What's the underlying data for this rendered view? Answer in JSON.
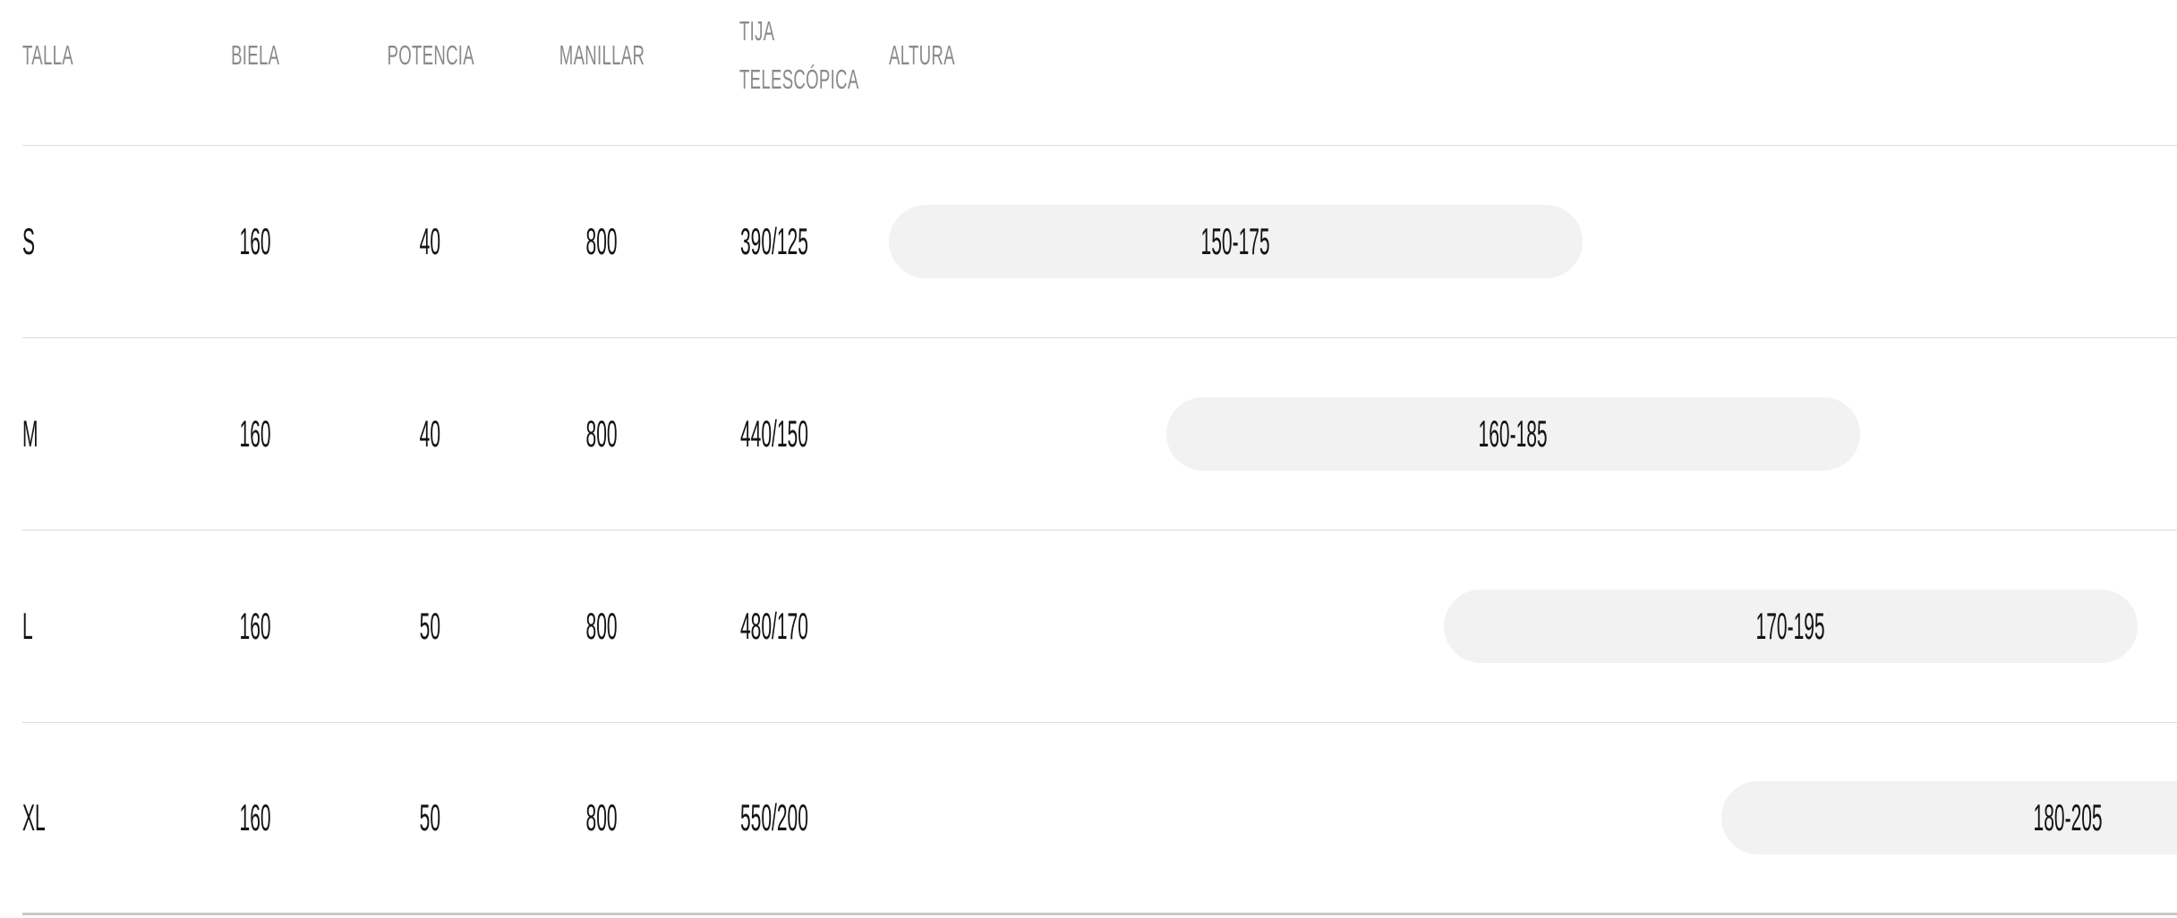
{
  "table": {
    "columns": [
      {
        "key": "talla",
        "label": "TALLA"
      },
      {
        "key": "biela",
        "label": "BIELA"
      },
      {
        "key": "potencia",
        "label": "POTENCIA"
      },
      {
        "key": "manillar",
        "label": "MANILLAR"
      },
      {
        "key": "tija",
        "label": "TIJA TELESCÓPICA"
      },
      {
        "key": "altura",
        "label": "ALTURA"
      }
    ],
    "rows": [
      {
        "talla": "S",
        "biela": "160",
        "potencia": "40",
        "manillar": "800",
        "tija": "390/125",
        "altura": {
          "label": "150-175",
          "min_cm": 150,
          "max_cm": 175
        }
      },
      {
        "talla": "M",
        "biela": "160",
        "potencia": "40",
        "manillar": "800",
        "tija": "440/150",
        "altura": {
          "label": "160-185",
          "min_cm": 160,
          "max_cm": 185
        }
      },
      {
        "talla": "L",
        "biela": "160",
        "potencia": "50",
        "manillar": "800",
        "tija": "480/170",
        "altura": {
          "label": "170-195",
          "min_cm": 170,
          "max_cm": 195
        }
      },
      {
        "talla": "XL",
        "biela": "160",
        "potencia": "50",
        "manillar": "800",
        "tija": "550/200",
        "altura": {
          "label": "180-205",
          "min_cm": 180,
          "max_cm": 205
        }
      }
    ]
  },
  "chart_data": {
    "type": "table",
    "columns": [
      "TALLA",
      "BIELA",
      "POTENCIA",
      "MANILLAR",
      "TIJA TELESCÓPICA",
      "ALTURA"
    ],
    "rows": [
      [
        "S",
        "160",
        "40",
        "800",
        "390/125",
        "150-175"
      ],
      [
        "M",
        "160",
        "40",
        "800",
        "440/150",
        "160-185"
      ],
      [
        "L",
        "160",
        "50",
        "800",
        "480/170",
        "170-195"
      ],
      [
        "XL",
        "160",
        "50",
        "800",
        "550/200",
        "180-205"
      ]
    ],
    "altura_ranges_cm": [
      {
        "talla": "S",
        "min": 150,
        "max": 175
      },
      {
        "talla": "M",
        "min": 160,
        "max": 185
      },
      {
        "talla": "L",
        "min": 170,
        "max": 195
      },
      {
        "talla": "XL",
        "min": 180,
        "max": 205
      }
    ],
    "altura_axis_range_cm": [
      150,
      205
    ],
    "notes": "ALTURA column renders each size's rider-height range as a horizontally positioned pill; XL pill is clipped at the right viewport edge."
  },
  "colors": {
    "header_text": "#8a8a8a",
    "data_text": "#141414",
    "pill_background": "#f2f2f2",
    "row_divider": "#dcdcdc",
    "bottom_border": "#c8c8c8",
    "background": "#ffffff"
  }
}
